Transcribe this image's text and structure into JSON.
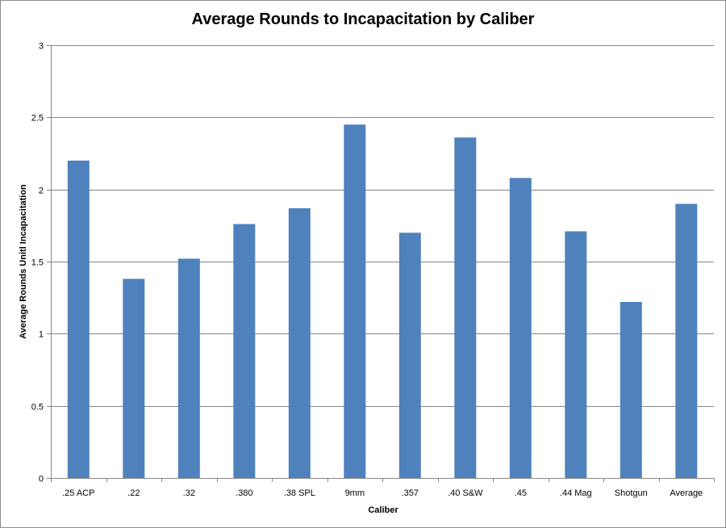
{
  "chart_data": {
    "type": "bar",
    "title": "Average Rounds to Incapacitation by Caliber",
    "xlabel": "Caliber",
    "ylabel": "Average Rounds Unitl Incapacitation",
    "categories": [
      ".25 ACP",
      ".22",
      ".32",
      ".380",
      ".38 SPL",
      "9mm",
      ".357",
      ".40 S&W",
      ".45",
      ".44 Mag",
      "Shotgun",
      "Average"
    ],
    "values": [
      2.2,
      1.38,
      1.52,
      1.76,
      1.87,
      2.45,
      1.7,
      2.36,
      2.08,
      1.71,
      1.22,
      1.9
    ],
    "ylim": [
      0,
      3
    ],
    "yticks": [
      "0",
      "0.5",
      "1",
      "1.5",
      "2",
      "2.5",
      "3"
    ],
    "grid": true,
    "bar_color": "#4f81bd",
    "grid_color": "#868686"
  }
}
